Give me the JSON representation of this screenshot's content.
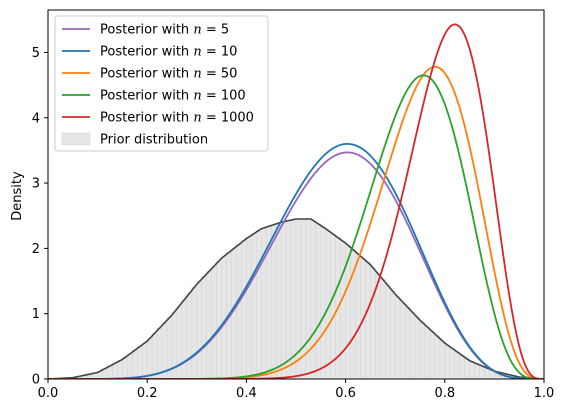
{
  "chart_data": {
    "type": "line",
    "xlabel": "",
    "ylabel": "Density",
    "xlim": [
      0.0,
      1.0
    ],
    "ylim": [
      0.0,
      5.65
    ],
    "xticks": [
      "0.0",
      "0.2",
      "0.4",
      "0.6",
      "0.8",
      "1.0"
    ],
    "yticks": [
      "0",
      "1",
      "2",
      "3",
      "4",
      "5"
    ],
    "grid": false,
    "legend_position": "top-left",
    "series": [
      {
        "name": "Posterior with n = 5",
        "name_parts": [
          "Posterior with ",
          "n",
          " = 5"
        ],
        "color": "#9467bd",
        "a": 7.7,
        "b": 5.4,
        "peak": 3.47
      },
      {
        "name": "Posterior with n = 10",
        "name_parts": [
          "Posterior with ",
          "n",
          " = 10"
        ],
        "color": "#1f77b4",
        "a": 7.7,
        "b": 5.4,
        "peak": 3.6
      },
      {
        "name": "Posterior with n = 50",
        "name_parts": [
          "Posterior with ",
          "n",
          " = 50"
        ],
        "color": "#ff7f0e",
        "a": 14.5,
        "b": 4.8,
        "peak": 4.78
      },
      {
        "name": "Posterior with n = 100",
        "name_parts": [
          "Posterior with ",
          "n",
          " = 100"
        ],
        "color": "#2ca02c",
        "a": 14.7,
        "b": 5.4,
        "peak": 4.65
      },
      {
        "name": "Posterior with n = 1000",
        "name_parts": [
          "Posterior with ",
          "n",
          " = 1000"
        ],
        "color": "#d62728",
        "a": 18.8,
        "b": 4.9,
        "peak": 5.43
      }
    ],
    "prior": {
      "name": "Prior distribution",
      "fill_color": "#e6e6e6",
      "line_color": "#444444",
      "kde": [
        [
          0.0,
          0.0
        ],
        [
          0.05,
          0.02
        ],
        [
          0.1,
          0.1
        ],
        [
          0.15,
          0.3
        ],
        [
          0.2,
          0.58
        ],
        [
          0.25,
          0.98
        ],
        [
          0.3,
          1.45
        ],
        [
          0.35,
          1.85
        ],
        [
          0.4,
          2.15
        ],
        [
          0.43,
          2.3
        ],
        [
          0.47,
          2.4
        ],
        [
          0.5,
          2.45
        ],
        [
          0.53,
          2.45
        ],
        [
          0.56,
          2.3
        ],
        [
          0.6,
          2.08
        ],
        [
          0.65,
          1.75
        ],
        [
          0.7,
          1.3
        ],
        [
          0.75,
          0.9
        ],
        [
          0.8,
          0.55
        ],
        [
          0.85,
          0.28
        ],
        [
          0.9,
          0.12
        ],
        [
          0.95,
          0.03
        ],
        [
          1.0,
          0.0
        ]
      ]
    }
  }
}
